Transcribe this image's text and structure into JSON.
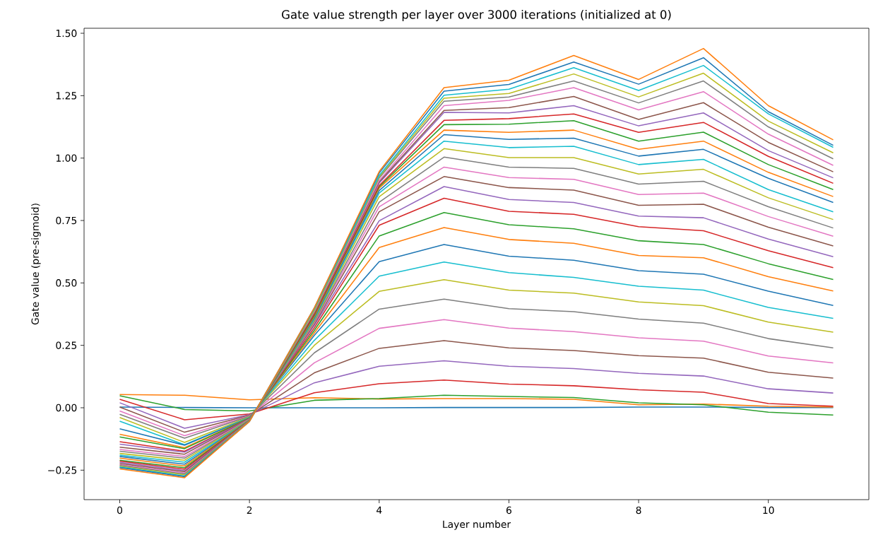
{
  "chart_data": {
    "type": "line",
    "title": "Gate value strength per layer over 3000 iterations (initialized at 0)",
    "xlabel": "Layer number",
    "ylabel": "Gate value (pre-sigmoid)",
    "x": [
      0,
      1,
      2,
      3,
      4,
      5,
      6,
      7,
      8,
      9,
      10,
      11
    ],
    "xlim": [
      -0.55,
      11.55
    ],
    "ylim": [
      -0.368,
      1.52
    ],
    "xticks": [
      0,
      2,
      4,
      6,
      8,
      10
    ],
    "yticks": [
      {
        "value": -0.25,
        "label": "−0.25"
      },
      {
        "value": 0,
        "label": "0.00"
      },
      {
        "value": 0.25,
        "label": "0.25"
      },
      {
        "value": 0.5,
        "label": "0.50"
      },
      {
        "value": 0.75,
        "label": "0.75"
      },
      {
        "value": 1.0,
        "label": "1.00"
      },
      {
        "value": 1.25,
        "label": "1.25"
      },
      {
        "value": 1.5,
        "label": "1.50"
      }
    ],
    "series": [
      {
        "color": "#1f77b4",
        "values": [
          0.003,
          0.001,
          0.0,
          0.0,
          0.0,
          0.001,
          0.001,
          0.001,
          0.003,
          0.003,
          0.001,
          0.001
        ]
      },
      {
        "color": "#ff7f0e",
        "values": [
          0.053,
          0.05,
          0.032,
          0.04,
          0.035,
          0.037,
          0.037,
          0.034,
          0.012,
          0.015,
          0.006,
          0.003
        ]
      },
      {
        "color": "#2ca02c",
        "values": [
          0.048,
          -0.007,
          -0.013,
          0.03,
          0.037,
          0.05,
          0.045,
          0.041,
          0.02,
          0.012,
          -0.018,
          -0.029
        ]
      },
      {
        "color": "#d62728",
        "values": [
          0.034,
          -0.048,
          -0.025,
          0.06,
          0.096,
          0.111,
          0.095,
          0.088,
          0.072,
          0.062,
          0.017,
          0.006
        ]
      },
      {
        "color": "#9467bd",
        "values": [
          0.02,
          -0.082,
          -0.028,
          0.1,
          0.166,
          0.188,
          0.166,
          0.157,
          0.138,
          0.127,
          0.076,
          0.059
        ]
      },
      {
        "color": "#8c564b",
        "values": [
          0.003,
          -0.098,
          -0.03,
          0.14,
          0.238,
          0.269,
          0.24,
          0.229,
          0.209,
          0.199,
          0.142,
          0.119
        ]
      },
      {
        "color": "#e377c2",
        "values": [
          -0.013,
          -0.112,
          -0.032,
          0.18,
          0.318,
          0.353,
          0.319,
          0.305,
          0.28,
          0.267,
          0.207,
          0.18
        ]
      },
      {
        "color": "#7f7f7f",
        "values": [
          -0.026,
          -0.122,
          -0.034,
          0.22,
          0.395,
          0.435,
          0.397,
          0.385,
          0.355,
          0.339,
          0.277,
          0.24
        ]
      },
      {
        "color": "#bcbd22",
        "values": [
          -0.039,
          -0.139,
          -0.036,
          0.25,
          0.466,
          0.513,
          0.471,
          0.459,
          0.424,
          0.409,
          0.343,
          0.303
        ]
      },
      {
        "color": "#17becf",
        "values": [
          -0.054,
          -0.148,
          -0.038,
          0.27,
          0.527,
          0.584,
          0.541,
          0.522,
          0.487,
          0.471,
          0.402,
          0.358
        ]
      },
      {
        "color": "#1f77b4",
        "values": [
          -0.084,
          -0.15,
          -0.04,
          0.29,
          0.585,
          0.654,
          0.607,
          0.591,
          0.549,
          0.535,
          0.467,
          0.41
        ]
      },
      {
        "color": "#ff7f0e",
        "values": [
          -0.106,
          -0.16,
          -0.041,
          0.3,
          0.642,
          0.722,
          0.674,
          0.659,
          0.61,
          0.601,
          0.525,
          0.468
        ]
      },
      {
        "color": "#2ca02c",
        "values": [
          -0.117,
          -0.164,
          -0.042,
          0.31,
          0.688,
          0.782,
          0.733,
          0.717,
          0.669,
          0.654,
          0.577,
          0.514
        ]
      },
      {
        "color": "#d62728",
        "values": [
          -0.136,
          -0.174,
          -0.043,
          0.32,
          0.731,
          0.839,
          0.787,
          0.775,
          0.725,
          0.709,
          0.629,
          0.561
        ]
      },
      {
        "color": "#9467bd",
        "values": [
          -0.146,
          -0.178,
          -0.044,
          0.33,
          0.749,
          0.886,
          0.834,
          0.822,
          0.768,
          0.761,
          0.676,
          0.605
        ]
      },
      {
        "color": "#8c564b",
        "values": [
          -0.158,
          -0.186,
          -0.045,
          0.335,
          0.785,
          0.926,
          0.882,
          0.872,
          0.811,
          0.815,
          0.723,
          0.648
        ]
      },
      {
        "color": "#e377c2",
        "values": [
          -0.167,
          -0.195,
          -0.046,
          0.34,
          0.805,
          0.964,
          0.922,
          0.915,
          0.854,
          0.86,
          0.766,
          0.687
        ]
      },
      {
        "color": "#7f7f7f",
        "values": [
          -0.174,
          -0.202,
          -0.047,
          0.345,
          0.823,
          1.004,
          0.964,
          0.959,
          0.896,
          0.907,
          0.805,
          0.72
        ]
      },
      {
        "color": "#bcbd22",
        "values": [
          -0.183,
          -0.21,
          -0.048,
          0.35,
          0.845,
          1.038,
          1.002,
          1.002,
          0.936,
          0.955,
          0.841,
          0.754
        ]
      },
      {
        "color": "#17becf",
        "values": [
          -0.19,
          -0.218,
          -0.049,
          0.355,
          0.86,
          1.068,
          1.042,
          1.047,
          0.974,
          0.995,
          0.874,
          0.785
        ]
      },
      {
        "color": "#1f77b4",
        "values": [
          -0.195,
          -0.226,
          -0.05,
          0.36,
          0.87,
          1.094,
          1.075,
          1.08,
          1.008,
          1.035,
          0.919,
          0.822
        ]
      },
      {
        "color": "#ff7f0e",
        "values": [
          -0.202,
          -0.233,
          -0.05,
          0.365,
          0.88,
          1.112,
          1.103,
          1.112,
          1.035,
          1.068,
          0.943,
          0.846
        ]
      },
      {
        "color": "#2ca02c",
        "values": [
          -0.21,
          -0.24,
          -0.051,
          0.37,
          0.885,
          1.134,
          1.136,
          1.15,
          1.068,
          1.104,
          0.974,
          0.874
        ]
      },
      {
        "color": "#d62728",
        "values": [
          -0.214,
          -0.246,
          -0.051,
          0.375,
          0.89,
          1.151,
          1.158,
          1.177,
          1.103,
          1.143,
          1.007,
          0.899
        ]
      },
      {
        "color": "#9467bd",
        "values": [
          -0.219,
          -0.252,
          -0.052,
          0.38,
          0.9,
          1.183,
          1.181,
          1.21,
          1.129,
          1.181,
          1.03,
          0.921
        ]
      },
      {
        "color": "#8c564b",
        "values": [
          -0.224,
          -0.256,
          -0.052,
          0.38,
          0.905,
          1.191,
          1.202,
          1.247,
          1.155,
          1.222,
          1.063,
          0.945
        ]
      },
      {
        "color": "#e377c2",
        "values": [
          -0.228,
          -0.261,
          -0.053,
          0.385,
          0.91,
          1.21,
          1.231,
          1.282,
          1.193,
          1.266,
          1.096,
          0.971
        ]
      },
      {
        "color": "#7f7f7f",
        "values": [
          -0.231,
          -0.265,
          -0.053,
          0.39,
          0.92,
          1.228,
          1.245,
          1.309,
          1.221,
          1.309,
          1.125,
          0.997
        ]
      },
      {
        "color": "#bcbd22",
        "values": [
          -0.234,
          -0.269,
          -0.054,
          0.39,
          0.925,
          1.24,
          1.259,
          1.337,
          1.245,
          1.34,
          1.148,
          1.021
        ]
      },
      {
        "color": "#17becf",
        "values": [
          -0.237,
          -0.273,
          -0.054,
          0.395,
          0.93,
          1.252,
          1.276,
          1.362,
          1.271,
          1.371,
          1.177,
          1.043
        ]
      },
      {
        "color": "#1f77b4",
        "values": [
          -0.24,
          -0.276,
          -0.055,
          0.4,
          0.94,
          1.268,
          1.295,
          1.385,
          1.296,
          1.402,
          1.186,
          1.051
        ]
      },
      {
        "color": "#ff7f0e",
        "values": [
          -0.245,
          -0.28,
          -0.055,
          0.4,
          0.946,
          1.282,
          1.312,
          1.411,
          1.315,
          1.439,
          1.21,
          1.073
        ]
      }
    ]
  }
}
